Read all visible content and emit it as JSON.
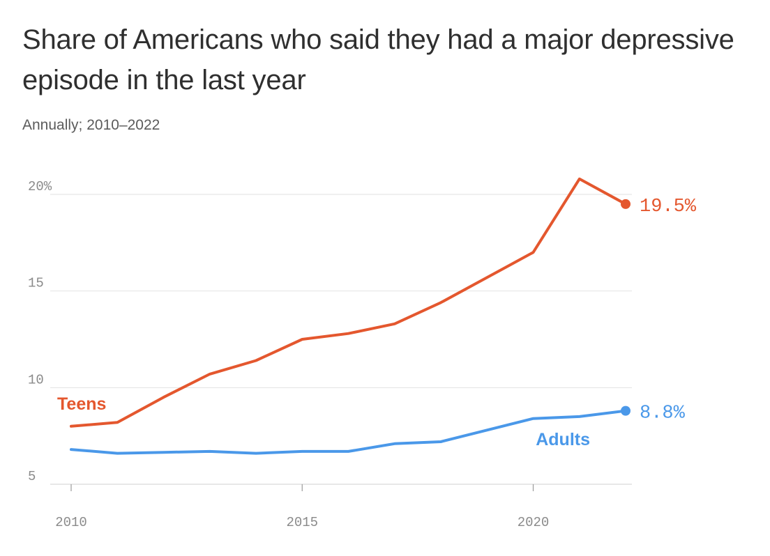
{
  "chart_data": {
    "type": "line",
    "title": "Share of Americans who said they had a major depressive episode in the last year",
    "subtitle": "Annually; 2010–2022",
    "x": [
      2010,
      2011,
      2012,
      2013,
      2014,
      2015,
      2016,
      2017,
      2018,
      2019,
      2020,
      2021,
      2022
    ],
    "xlim": [
      2010,
      2022
    ],
    "ylim": [
      5,
      20
    ],
    "y_ticks": [
      {
        "value": 5,
        "label": "5"
      },
      {
        "value": 10,
        "label": "10"
      },
      {
        "value": 15,
        "label": "15"
      },
      {
        "value": 20,
        "label": "20%"
      }
    ],
    "x_ticks": [
      {
        "value": 2010,
        "label": "2010"
      },
      {
        "value": 2015,
        "label": "2015"
      },
      {
        "value": 2020,
        "label": "2020"
      }
    ],
    "grid": true,
    "series": [
      {
        "name": "Teens",
        "color": "#e4572e",
        "values": [
          8.0,
          8.2,
          9.5,
          10.7,
          11.4,
          12.5,
          12.8,
          13.3,
          14.4,
          15.7,
          17.0,
          20.8,
          19.5
        ],
        "end_label": "19.5%"
      },
      {
        "name": "Adults",
        "color": "#4a98e9",
        "values": [
          6.8,
          6.6,
          6.65,
          6.7,
          6.6,
          6.7,
          6.7,
          7.1,
          7.2,
          7.8,
          8.4,
          8.5,
          8.8
        ],
        "end_label": "8.8%"
      }
    ]
  }
}
